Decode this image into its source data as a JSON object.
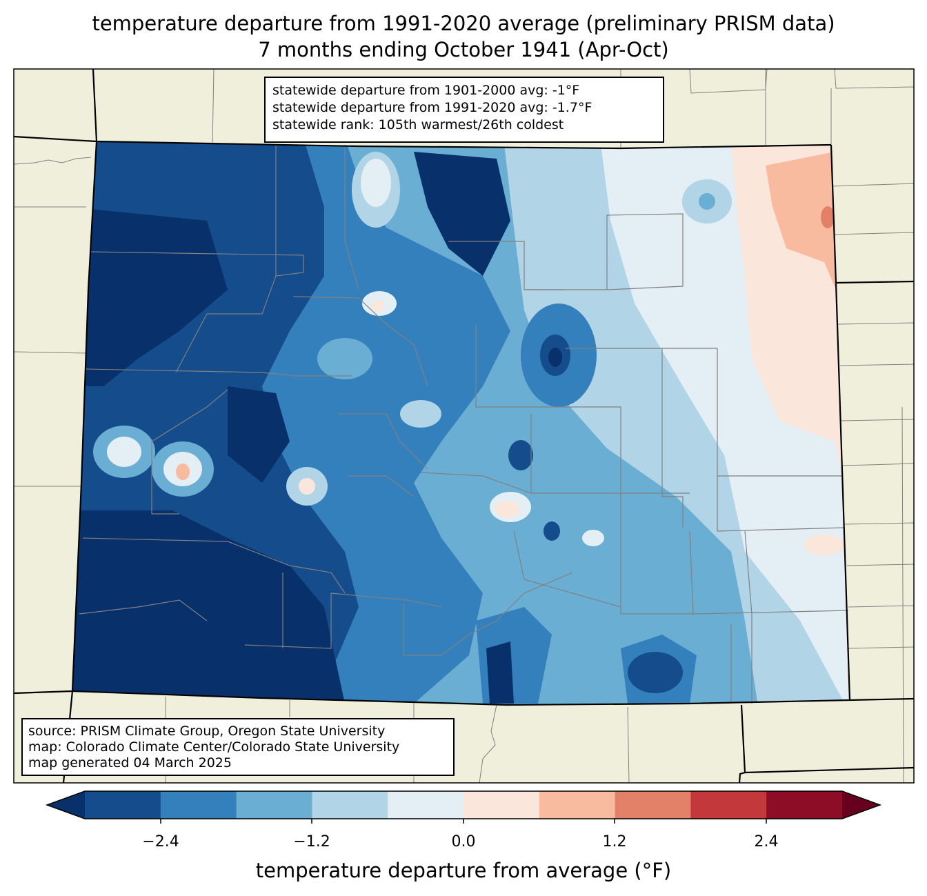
{
  "title": {
    "line1": "temperature departure from 1991-2020 average (preliminary PRISM data)",
    "line2": "7 months ending October 1941 (Apr-Oct)"
  },
  "stats": {
    "line1": "statewide departure from 1901-2000 avg: -1°F",
    "line2": "statewide departure from 1991-2020 avg: -1.7°F",
    "line3": "statewide rank: 105th warmest/26th coldest"
  },
  "source": {
    "line1": "source: PRISM Climate Group, Oregon State University",
    "line2": "map: Colorado Climate Center/Colorado State University",
    "line3": "map generated 04 March 2025"
  },
  "colorbar": {
    "label": "temperature departure from average (°F)",
    "ticks": [
      "−2.4",
      "−1.2",
      "0.0",
      "1.2",
      "2.4"
    ],
    "bins": [
      {
        "color": "#08306b"
      },
      {
        "color": "#154c8c"
      },
      {
        "color": "#3480bd"
      },
      {
        "color": "#6aaed3"
      },
      {
        "color": "#b2d4e7"
      },
      {
        "color": "#e4eef5"
      },
      {
        "color": "#fbe6dc"
      },
      {
        "color": "#f8bba0"
      },
      {
        "color": "#e38068"
      },
      {
        "color": "#c3393b"
      },
      {
        "color": "#8c0d25"
      },
      {
        "color": "#67001f"
      }
    ]
  },
  "colors": {
    "land": "#efefdc",
    "county_lines": "#808080",
    "state_lines": "#000000"
  }
}
